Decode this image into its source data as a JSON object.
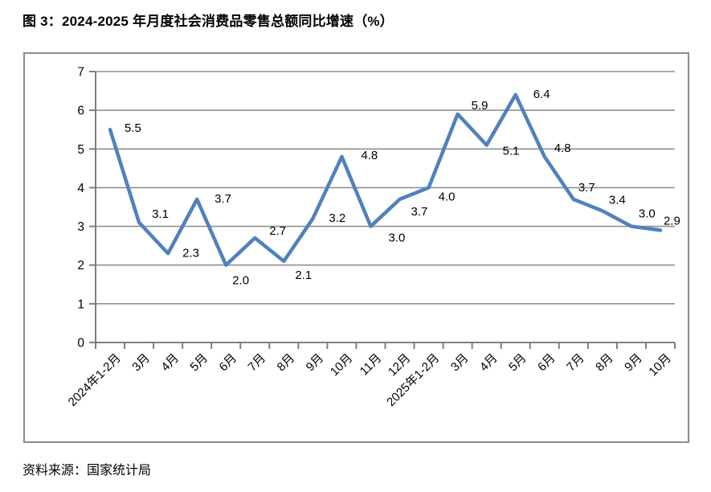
{
  "page": {
    "title": "图 3：2024-2025 年月度社会消费品零售总额同比增速（%）",
    "source_note": "资料来源：国家统计局"
  },
  "chart_data": {
    "type": "line",
    "title": "图 3：2024-2025 年月度社会消费品零售总额同比增速（%）",
    "categories": [
      "2024年1-2月",
      "3月",
      "4月",
      "5月",
      "6月",
      "7月",
      "8月",
      "9月",
      "10月",
      "11月",
      "12月",
      "2025年1-2月",
      "3月",
      "4月",
      "5月",
      "6月",
      "7月",
      "8月",
      "9月",
      "10月"
    ],
    "values": [
      5.5,
      3.1,
      2.3,
      3.7,
      2.0,
      2.7,
      2.1,
      3.2,
      4.8,
      3.0,
      3.7,
      4.0,
      5.9,
      5.1,
      6.4,
      4.8,
      3.7,
      3.4,
      3.0,
      2.9
    ],
    "data_labels": [
      "5.5",
      "3.1",
      "2.3",
      "3.7",
      "2.0",
      "2.7",
      "2.1",
      "3.2",
      "4.8",
      "3.0",
      "3.7",
      "4.0",
      "5.9",
      "5.1",
      "6.4",
      "4.8",
      "3.7",
      "3.4",
      "3.0",
      "2.9"
    ],
    "xlabel": "",
    "ylabel": "",
    "ylim": [
      0,
      7
    ],
    "yticks": [
      0,
      1,
      2,
      3,
      4,
      5,
      6,
      7
    ],
    "grid": "horizontal-only",
    "legend": "none",
    "source": "资料来源：国家统计局",
    "colors": {
      "line": "#4F81BD",
      "gridline": "#909090",
      "axis": "#7F7F7F",
      "text": "#000000",
      "frame_border": "#8C8C8C",
      "background": "#FFFFFF"
    }
  }
}
